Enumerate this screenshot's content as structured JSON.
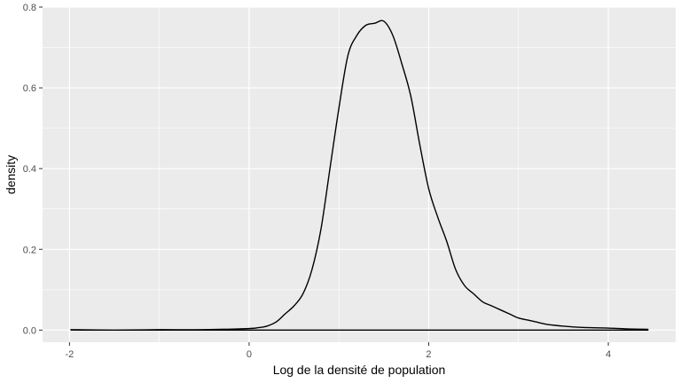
{
  "chart_data": {
    "type": "area",
    "title": "",
    "xlabel": "Log de la densité de population",
    "ylabel": "density",
    "xlim": [
      -2.3,
      4.75
    ],
    "ylim": [
      -0.03,
      0.8
    ],
    "x_ticks": [
      -2,
      0,
      2,
      4
    ],
    "x_tick_labels": [
      "-2",
      "0",
      "2",
      "4"
    ],
    "y_ticks": [
      0.0,
      0.2,
      0.4,
      0.6,
      0.8
    ],
    "y_tick_labels": [
      "0.0",
      "0.2",
      "0.4",
      "0.6",
      "0.8"
    ],
    "grid": true,
    "colors": {
      "panel": "#ebebeb",
      "grid": "#ffffff",
      "line": "#000000"
    },
    "series": [
      {
        "x": [
          -1.99,
          -1.5,
          -1.0,
          -0.5,
          0.0,
          0.1,
          0.2,
          0.3,
          0.4,
          0.5,
          0.6,
          0.7,
          0.8,
          0.9,
          1.0,
          1.1,
          1.2,
          1.3,
          1.4,
          1.5,
          1.6,
          1.7,
          1.8,
          1.9,
          2.0,
          2.1,
          2.2,
          2.3,
          2.4,
          2.5,
          2.6,
          2.7,
          2.8,
          2.9,
          3.0,
          3.1,
          3.2,
          3.3,
          3.4,
          3.6,
          3.8,
          4.0,
          4.2,
          4.44
        ],
        "y": [
          0.001,
          0.0,
          0.001,
          0.001,
          0.004,
          0.006,
          0.01,
          0.02,
          0.04,
          0.06,
          0.09,
          0.15,
          0.25,
          0.4,
          0.55,
          0.68,
          0.73,
          0.755,
          0.76,
          0.765,
          0.73,
          0.66,
          0.58,
          0.46,
          0.35,
          0.28,
          0.22,
          0.15,
          0.11,
          0.09,
          0.07,
          0.06,
          0.05,
          0.04,
          0.03,
          0.025,
          0.02,
          0.015,
          0.012,
          0.008,
          0.006,
          0.005,
          0.003,
          0.002
        ]
      }
    ]
  }
}
